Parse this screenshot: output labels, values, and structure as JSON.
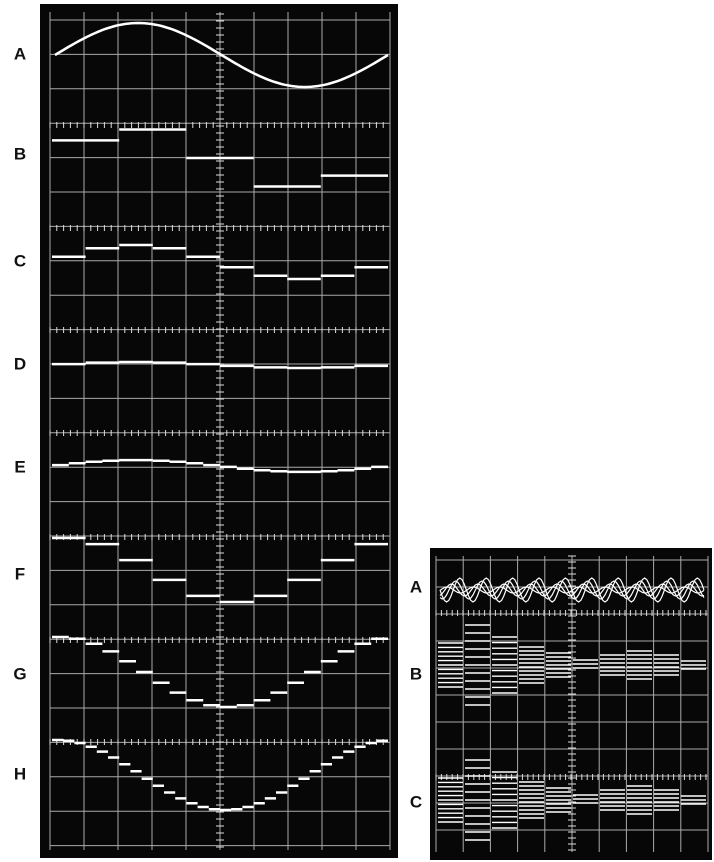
{
  "left_panel": {
    "labels": [
      "A",
      "B",
      "C",
      "D",
      "E",
      "F",
      "G",
      "H"
    ]
  },
  "right_panel": {
    "labels": [
      "A",
      "B",
      "C"
    ]
  }
}
